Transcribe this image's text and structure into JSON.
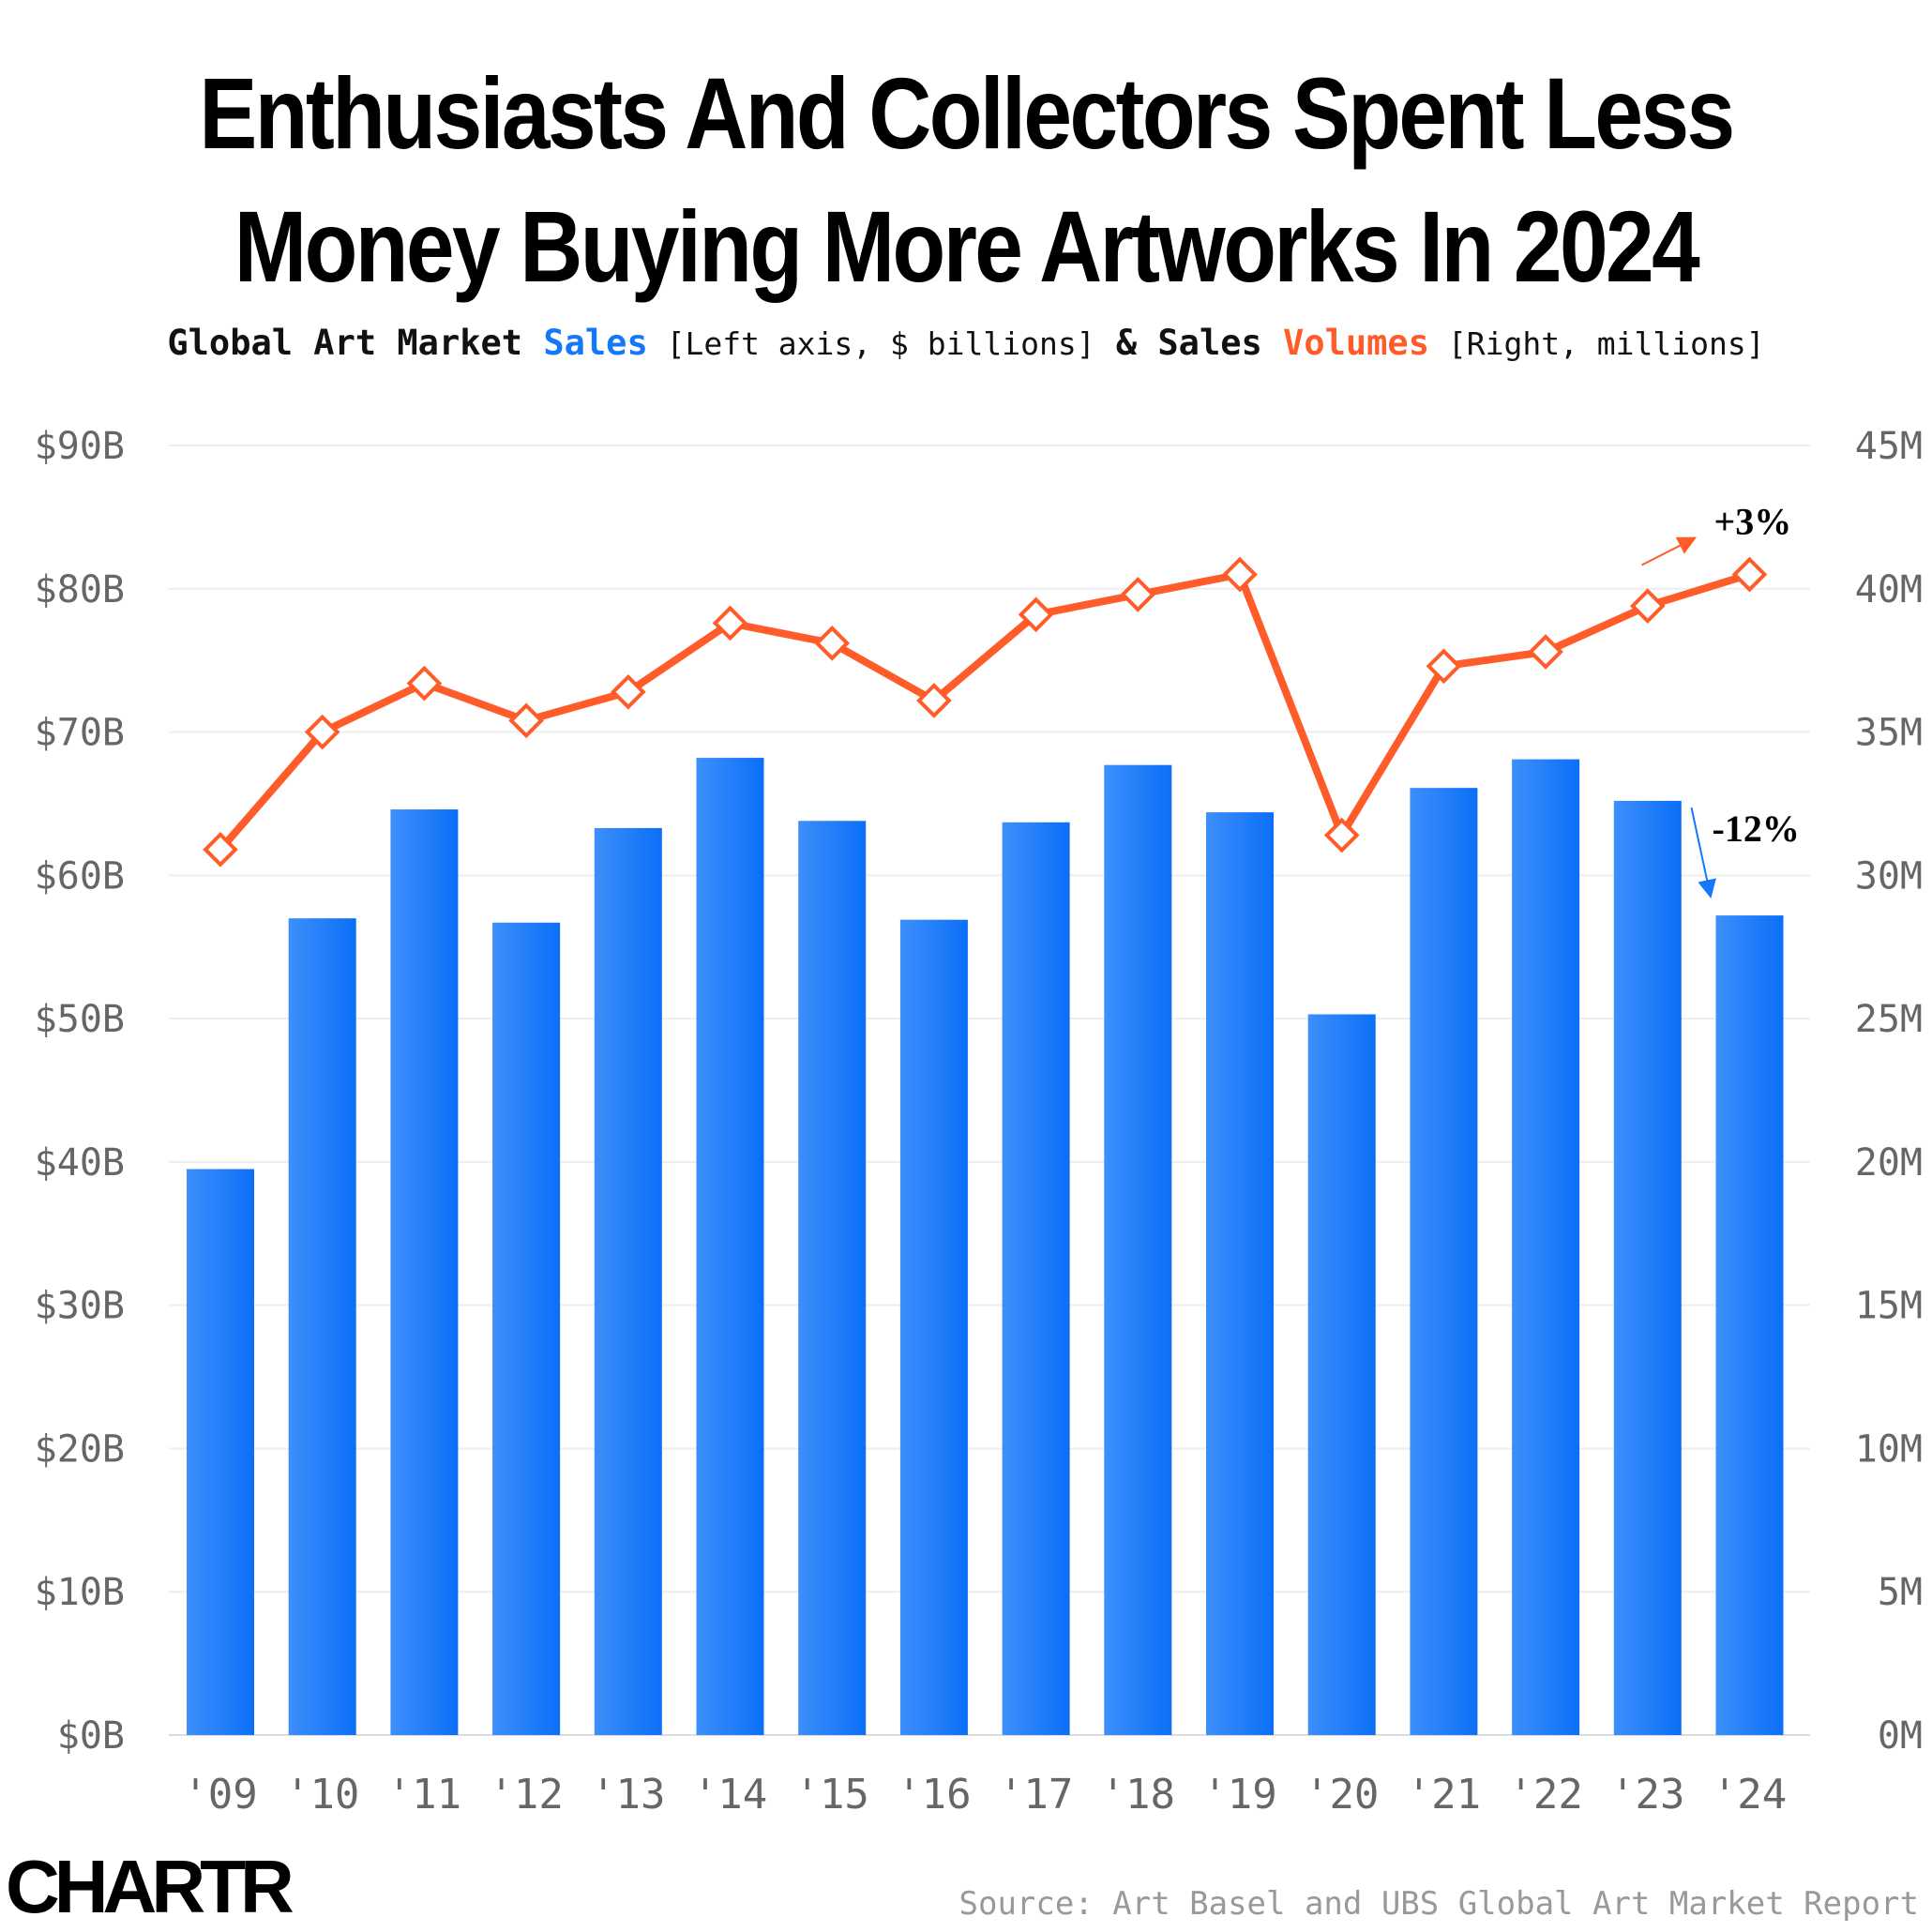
{
  "title_line1": "Enthusiasts And Collectors Spent Less",
  "title_line2": "Money Buying More Artworks In 2024",
  "subtitle": {
    "part1": "Global Art Market ",
    "sales_word": "Sales",
    "part2": " [Left axis, $ billions]",
    "part3": " & Sales ",
    "volumes_word": "Volumes",
    "part4": " [Right, millions]"
  },
  "colors": {
    "bar": "#1478fa",
    "line": "#ff5c2a",
    "grid": "#eeeeee",
    "axis_text": "#666666",
    "sales_text": "#1478fa",
    "volumes_text": "#ff5c2a"
  },
  "logo": "CHARTR",
  "source": "Source: Art Basel and UBS Global Art Market Report",
  "chart_data": {
    "type": "bar",
    "categories": [
      "'09",
      "'10",
      "'11",
      "'12",
      "'13",
      "'14",
      "'15",
      "'16",
      "'17",
      "'18",
      "'19",
      "'20",
      "'21",
      "'22",
      "'23",
      "'24"
    ],
    "series": [
      {
        "axis": "left",
        "type": "bar",
        "values": [
          39.5,
          57.0,
          64.6,
          56.7,
          63.3,
          68.2,
          63.8,
          56.9,
          63.7,
          67.7,
          64.4,
          50.3,
          66.1,
          68.1,
          65.2,
          57.2
        ]
      },
      {
        "axis": "right",
        "type": "line",
        "values": [
          30.9,
          35.0,
          36.7,
          35.4,
          36.4,
          38.8,
          38.1,
          36.1,
          39.1,
          39.8,
          40.5,
          31.4,
          37.3,
          37.8,
          39.4,
          40.5
        ]
      }
    ],
    "left_axis": {
      "ylim": [
        0,
        90
      ],
      "ticks": [
        "$0B",
        "$10B",
        "$20B",
        "$30B",
        "$40B",
        "$50B",
        "$60B",
        "$70B",
        "$80B",
        "$90B"
      ]
    },
    "right_axis": {
      "ylim": [
        0,
        45
      ],
      "ticks": [
        "0M",
        "5M",
        "10M",
        "15M",
        "20M",
        "25M",
        "30M",
        "35M",
        "40M",
        "45M"
      ]
    },
    "annotations": [
      {
        "text": "+3%",
        "series": "line",
        "category": "'24"
      },
      {
        "text": "-12%",
        "series": "bar",
        "category": "'24"
      }
    ],
    "grid": true,
    "legend": "none"
  }
}
